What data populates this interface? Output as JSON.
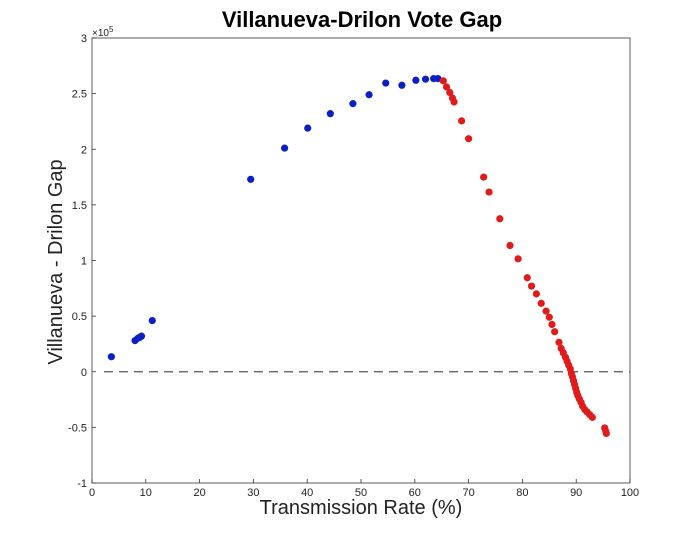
{
  "chart_data": {
    "type": "scatter",
    "title": "Villanueva-Drilon Vote Gap",
    "xlabel": "Transmission Rate (%)",
    "ylabel": "Villanueva - Drilon Gap",
    "xlim": [
      0,
      100
    ],
    "ylim": [
      -100000,
      300000
    ],
    "x_ticks": [
      0,
      10,
      20,
      30,
      40,
      50,
      60,
      70,
      80,
      90,
      100
    ],
    "y_ticks": [
      -100000,
      -50000,
      0,
      50000,
      100000,
      150000,
      200000,
      250000,
      300000
    ],
    "y_tick_labels": [
      "-1",
      "-0.5",
      "0",
      "0.5",
      "1",
      "1.5",
      "2",
      "2.5",
      "3"
    ],
    "y_exponent_label": "×10",
    "y_exponent_power": "5",
    "grid": false,
    "zero_reference_line": {
      "y": 0,
      "style": "dashed",
      "color": "#555555"
    },
    "series": [
      {
        "color": "#0b1fc4",
        "points": [
          [
            3.6,
            13500
          ],
          [
            8.0,
            28000
          ],
          [
            8.5,
            30000
          ],
          [
            8.9,
            31000
          ],
          [
            9.2,
            32000
          ],
          [
            11.2,
            46000
          ],
          [
            29.5,
            173000
          ],
          [
            35.8,
            201000
          ],
          [
            40.1,
            219000
          ],
          [
            44.3,
            232000
          ],
          [
            48.5,
            241000
          ],
          [
            51.5,
            249000
          ],
          [
            54.6,
            259500
          ],
          [
            57.6,
            257500
          ],
          [
            60.2,
            262000
          ],
          [
            62.0,
            263000
          ],
          [
            63.5,
            263500
          ],
          [
            64.3,
            263500
          ]
        ]
      },
      {
        "color": "#e01b1b",
        "points": [
          [
            65.3,
            261500
          ],
          [
            65.9,
            256000
          ],
          [
            66.5,
            251000
          ],
          [
            67.0,
            246000
          ],
          [
            67.3,
            242500
          ],
          [
            68.7,
            225500
          ],
          [
            70.0,
            209500
          ],
          [
            72.8,
            175000
          ],
          [
            73.8,
            161500
          ],
          [
            75.8,
            137500
          ],
          [
            77.7,
            113500
          ],
          [
            79.2,
            101500
          ],
          [
            80.9,
            84500
          ],
          [
            81.7,
            77000
          ],
          [
            82.6,
            70000
          ],
          [
            83.5,
            61500
          ],
          [
            84.4,
            54500
          ],
          [
            85.0,
            49000
          ],
          [
            85.5,
            42500
          ],
          [
            86.0,
            36000
          ],
          [
            86.8,
            26500
          ],
          [
            87.2,
            21000
          ],
          [
            87.6,
            17000
          ],
          [
            88.0,
            13000
          ],
          [
            88.3,
            9500
          ],
          [
            88.6,
            6000
          ],
          [
            88.9,
            2500
          ],
          [
            89.1,
            -1500
          ],
          [
            89.3,
            -4500
          ],
          [
            89.5,
            -8000
          ],
          [
            89.7,
            -11500
          ],
          [
            89.9,
            -15000
          ],
          [
            90.1,
            -18500
          ],
          [
            90.3,
            -21500
          ],
          [
            90.6,
            -24500
          ],
          [
            90.9,
            -27500
          ],
          [
            91.2,
            -31000
          ],
          [
            91.6,
            -34000
          ],
          [
            92.0,
            -36000
          ],
          [
            92.5,
            -38500
          ],
          [
            93.0,
            -41000
          ],
          [
            95.3,
            -50500
          ],
          [
            95.5,
            -53500
          ],
          [
            95.6,
            -55500
          ]
        ]
      }
    ]
  }
}
